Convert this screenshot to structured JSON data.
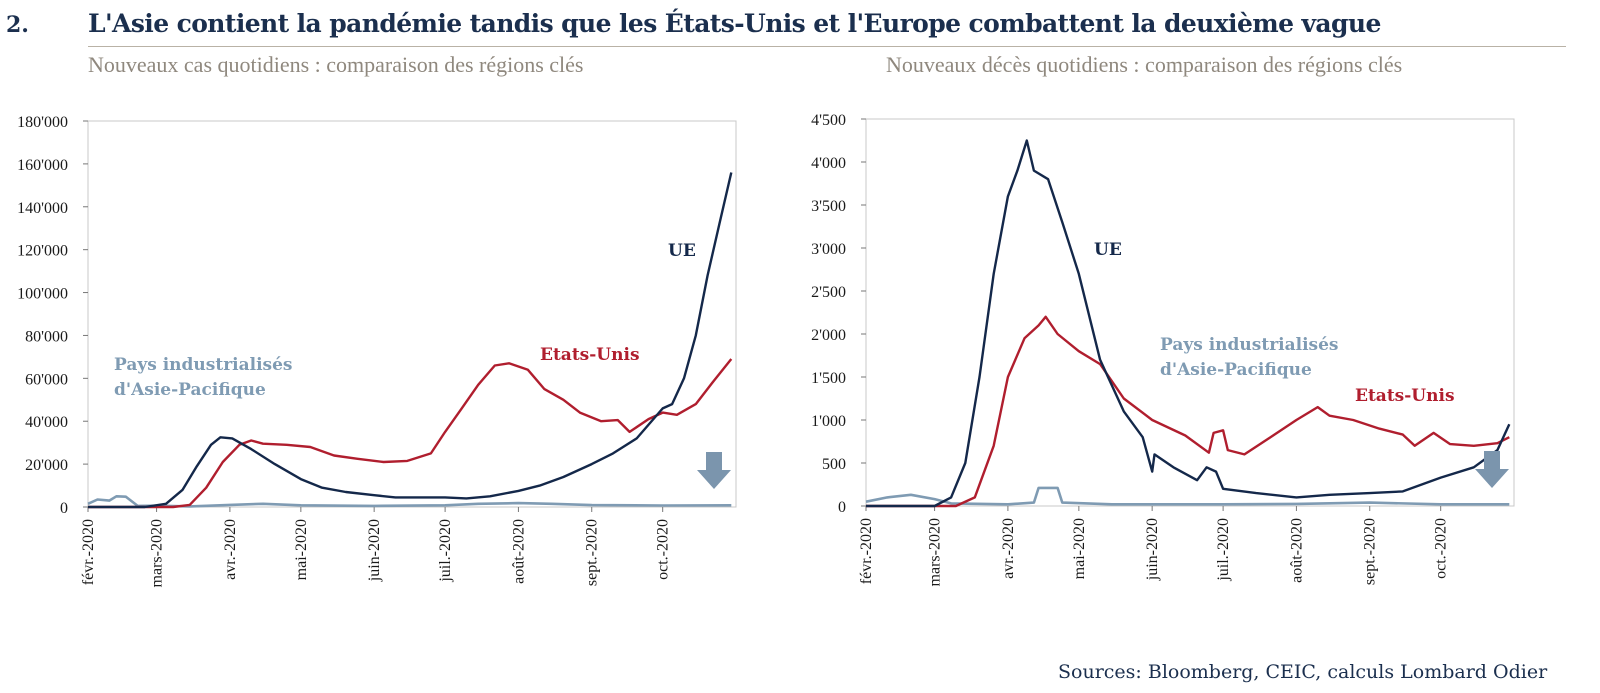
{
  "figure_number": "2.",
  "title": "L'Asie contient la pandémie tandis que les États-Unis et l'Europe combattent la deuxième vague",
  "source": "Sources: Bloomberg, CEIC, calculs Lombard Odier",
  "colors": {
    "ue": "#14284a",
    "usa": "#b01e2e",
    "asia": "#7f9bb3",
    "arrow": "#7b95ad"
  },
  "chart_data": [
    {
      "type": "line",
      "title": "Nouveaux cas quotidiens : comparaison des régions clés",
      "xlim": [
        "2020-02-01",
        "2020-11-01"
      ],
      "x_ticks": [
        "févr.-2020",
        "mars-2020",
        "avr.-2020",
        "mai-2020",
        "juin-2020",
        "juil.-2020",
        "août-2020",
        "sept.-2020",
        "oct.-2020"
      ],
      "ylim": [
        0,
        180000
      ],
      "y_ticks": [
        {
          "value": 0,
          "label": "0"
        },
        {
          "value": 20000,
          "label": "20'000"
        },
        {
          "value": 40000,
          "label": "40'000"
        },
        {
          "value": 60000,
          "label": "60'000"
        },
        {
          "value": 80000,
          "label": "80'000"
        },
        {
          "value": 100000,
          "label": "100'000"
        },
        {
          "value": 120000,
          "label": "120'000"
        },
        {
          "value": 140000,
          "label": "140'000"
        },
        {
          "value": 160000,
          "label": "160'000"
        },
        {
          "value": 180000,
          "label": "180'000"
        }
      ],
      "series": [
        {
          "name": "UE",
          "color_key": "ue",
          "points": [
            [
              "2020-02-01",
              0
            ],
            [
              "2020-02-25",
              0
            ],
            [
              "2020-03-05",
              1500
            ],
            [
              "2020-03-12",
              8000
            ],
            [
              "2020-03-18",
              19000
            ],
            [
              "2020-03-24",
              29000
            ],
            [
              "2020-03-28",
              32500
            ],
            [
              "2020-04-02",
              32000
            ],
            [
              "2020-04-10",
              27000
            ],
            [
              "2020-04-20",
              20000
            ],
            [
              "2020-05-01",
              13000
            ],
            [
              "2020-05-10",
              9000
            ],
            [
              "2020-05-20",
              7000
            ],
            [
              "2020-06-01",
              5500
            ],
            [
              "2020-06-10",
              4500
            ],
            [
              "2020-06-20",
              4500
            ],
            [
              "2020-07-01",
              4500
            ],
            [
              "2020-07-10",
              4000
            ],
            [
              "2020-07-20",
              5000
            ],
            [
              "2020-08-01",
              7500
            ],
            [
              "2020-08-10",
              10000
            ],
            [
              "2020-08-20",
              14000
            ],
            [
              "2020-09-01",
              20000
            ],
            [
              "2020-09-10",
              25000
            ],
            [
              "2020-09-20",
              32000
            ],
            [
              "2020-10-01",
              46000
            ],
            [
              "2020-10-05",
              48000
            ],
            [
              "2020-10-10",
              60000
            ],
            [
              "2020-10-15",
              80000
            ],
            [
              "2020-10-20",
              108000
            ],
            [
              "2020-10-25",
              132000
            ],
            [
              "2020-10-30",
              156000
            ]
          ]
        },
        {
          "name": "Etats-Unis",
          "color_key": "usa",
          "points": [
            [
              "2020-02-01",
              0
            ],
            [
              "2020-03-08",
              0
            ],
            [
              "2020-03-15",
              1000
            ],
            [
              "2020-03-22",
              9000
            ],
            [
              "2020-03-29",
              21000
            ],
            [
              "2020-04-05",
              29000
            ],
            [
              "2020-04-10",
              31000
            ],
            [
              "2020-04-15",
              29500
            ],
            [
              "2020-04-25",
              29000
            ],
            [
              "2020-05-05",
              28000
            ],
            [
              "2020-05-15",
              24000
            ],
            [
              "2020-05-25",
              22500
            ],
            [
              "2020-06-05",
              21000
            ],
            [
              "2020-06-15",
              21500
            ],
            [
              "2020-06-25",
              25000
            ],
            [
              "2020-07-01",
              35000
            ],
            [
              "2020-07-08",
              46000
            ],
            [
              "2020-07-15",
              57000
            ],
            [
              "2020-07-22",
              66000
            ],
            [
              "2020-07-28",
              67000
            ],
            [
              "2020-08-05",
              64000
            ],
            [
              "2020-08-12",
              55000
            ],
            [
              "2020-08-20",
              50000
            ],
            [
              "2020-08-27",
              44000
            ],
            [
              "2020-09-05",
              40000
            ],
            [
              "2020-09-12",
              40500
            ],
            [
              "2020-09-17",
              35000
            ],
            [
              "2020-09-25",
              41000
            ],
            [
              "2020-10-01",
              44000
            ],
            [
              "2020-10-07",
              43000
            ],
            [
              "2020-10-15",
              48000
            ],
            [
              "2020-10-22",
              58000
            ],
            [
              "2020-10-30",
              69000
            ]
          ]
        },
        {
          "name": "Pays industrialisés d'Asie-Pacifique",
          "color_key": "asia",
          "points": [
            [
              "2020-02-01",
              1500
            ],
            [
              "2020-02-05",
              3500
            ],
            [
              "2020-02-10",
              3000
            ],
            [
              "2020-02-13",
              5000
            ],
            [
              "2020-02-17",
              4800
            ],
            [
              "2020-02-22",
              500
            ],
            [
              "2020-03-01",
              600
            ],
            [
              "2020-03-15",
              300
            ],
            [
              "2020-04-01",
              1000
            ],
            [
              "2020-04-15",
              1500
            ],
            [
              "2020-05-01",
              800
            ],
            [
              "2020-06-01",
              500
            ],
            [
              "2020-07-01",
              800
            ],
            [
              "2020-07-15",
              1500
            ],
            [
              "2020-08-01",
              1800
            ],
            [
              "2020-08-15",
              1500
            ],
            [
              "2020-09-01",
              900
            ],
            [
              "2020-10-01",
              700
            ],
            [
              "2020-10-30",
              800
            ]
          ]
        }
      ],
      "annotations": [
        {
          "text": "UE",
          "series": "UE"
        },
        {
          "text": "Etats-Unis",
          "series": "Etats-Unis"
        },
        {
          "text": "Pays industrialisés",
          "series": "Pays industrialisés d'Asie-Pacifique"
        },
        {
          "text": "d'Asie-Pacifique",
          "series": "Pays industrialisés d'Asie-Pacifique"
        }
      ],
      "arrow": "down"
    },
    {
      "type": "line",
      "title": "Nouveaux décès quotidiens : comparaison des régions clés",
      "xlim": [
        "2020-02-01",
        "2020-11-01"
      ],
      "x_ticks": [
        "févr.-2020",
        "mars-2020",
        "avr.-2020",
        "mai-2020",
        "juin-2020",
        "juil.-2020",
        "août-2020",
        "sept.-2020",
        "oct.-2020"
      ],
      "ylim": [
        0,
        4500
      ],
      "y_ticks": [
        {
          "value": 0,
          "label": "0"
        },
        {
          "value": 500,
          "label": "500"
        },
        {
          "value": 1000,
          "label": "1'000"
        },
        {
          "value": 1500,
          "label": "1'500"
        },
        {
          "value": 2000,
          "label": "2'000"
        },
        {
          "value": 2500,
          "label": "2'500"
        },
        {
          "value": 3000,
          "label": "3'000"
        },
        {
          "value": 3500,
          "label": "3'500"
        },
        {
          "value": 4000,
          "label": "4'000"
        },
        {
          "value": 4500,
          "label": "4'500"
        }
      ],
      "series": [
        {
          "name": "UE",
          "color_key": "ue",
          "points": [
            [
              "2020-02-01",
              0
            ],
            [
              "2020-03-01",
              0
            ],
            [
              "2020-03-08",
              100
            ],
            [
              "2020-03-14",
              500
            ],
            [
              "2020-03-20",
              1500
            ],
            [
              "2020-03-26",
              2700
            ],
            [
              "2020-04-01",
              3600
            ],
            [
              "2020-04-05",
              3900
            ],
            [
              "2020-04-09",
              4250
            ],
            [
              "2020-04-12",
              3900
            ],
            [
              "2020-04-18",
              3800
            ],
            [
              "2020-04-24",
              3300
            ],
            [
              "2020-05-01",
              2700
            ],
            [
              "2020-05-10",
              1700
            ],
            [
              "2020-05-20",
              1100
            ],
            [
              "2020-05-28",
              800
            ],
            [
              "2020-06-01",
              400
            ],
            [
              "2020-06-02",
              600
            ],
            [
              "2020-06-10",
              450
            ],
            [
              "2020-06-20",
              300
            ],
            [
              "2020-06-24",
              450
            ],
            [
              "2020-06-28",
              400
            ],
            [
              "2020-07-01",
              200
            ],
            [
              "2020-07-15",
              150
            ],
            [
              "2020-08-01",
              100
            ],
            [
              "2020-08-15",
              130
            ],
            [
              "2020-09-01",
              150
            ],
            [
              "2020-09-15",
              170
            ],
            [
              "2020-10-01",
              330
            ],
            [
              "2020-10-15",
              450
            ],
            [
              "2020-10-25",
              650
            ],
            [
              "2020-10-30",
              950
            ]
          ]
        },
        {
          "name": "Etats-Unis",
          "color_key": "usa",
          "points": [
            [
              "2020-02-01",
              0
            ],
            [
              "2020-03-10",
              0
            ],
            [
              "2020-03-18",
              100
            ],
            [
              "2020-03-26",
              700
            ],
            [
              "2020-04-01",
              1500
            ],
            [
              "2020-04-08",
              1950
            ],
            [
              "2020-04-14",
              2100
            ],
            [
              "2020-04-17",
              2200
            ],
            [
              "2020-04-22",
              2000
            ],
            [
              "2020-05-01",
              1800
            ],
            [
              "2020-05-10",
              1650
            ],
            [
              "2020-05-20",
              1250
            ],
            [
              "2020-06-01",
              1000
            ],
            [
              "2020-06-15",
              820
            ],
            [
              "2020-06-25",
              620
            ],
            [
              "2020-06-27",
              850
            ],
            [
              "2020-07-01",
              880
            ],
            [
              "2020-07-03",
              650
            ],
            [
              "2020-07-10",
              600
            ],
            [
              "2020-07-20",
              780
            ],
            [
              "2020-08-01",
              1000
            ],
            [
              "2020-08-10",
              1150
            ],
            [
              "2020-08-15",
              1050
            ],
            [
              "2020-08-25",
              1000
            ],
            [
              "2020-09-05",
              900
            ],
            [
              "2020-09-15",
              830
            ],
            [
              "2020-09-20",
              700
            ],
            [
              "2020-09-28",
              850
            ],
            [
              "2020-10-05",
              720
            ],
            [
              "2020-10-15",
              700
            ],
            [
              "2020-10-25",
              730
            ],
            [
              "2020-10-30",
              800
            ]
          ]
        },
        {
          "name": "Pays industrialisés d'Asie-Pacifique",
          "color_key": "asia",
          "points": [
            [
              "2020-02-01",
              50
            ],
            [
              "2020-02-10",
              100
            ],
            [
              "2020-02-20",
              130
            ],
            [
              "2020-03-01",
              80
            ],
            [
              "2020-03-08",
              30
            ],
            [
              "2020-04-01",
              20
            ],
            [
              "2020-04-12",
              40
            ],
            [
              "2020-04-14",
              210
            ],
            [
              "2020-04-22",
              210
            ],
            [
              "2020-04-24",
              40
            ],
            [
              "2020-05-15",
              20
            ],
            [
              "2020-07-01",
              20
            ],
            [
              "2020-08-01",
              25
            ],
            [
              "2020-09-01",
              40
            ],
            [
              "2020-10-01",
              20
            ],
            [
              "2020-10-30",
              20
            ]
          ]
        }
      ],
      "annotations": [
        {
          "text": "UE",
          "series": "UE"
        },
        {
          "text": "Etats-Unis",
          "series": "Etats-Unis"
        },
        {
          "text": "Pays industrialisés",
          "series": "Pays industrialisés d'Asie-Pacifique"
        },
        {
          "text": "d'Asie-Pacifique",
          "series": "Pays industrialisés d'Asie-Pacifique"
        }
      ],
      "arrow": "down"
    }
  ]
}
